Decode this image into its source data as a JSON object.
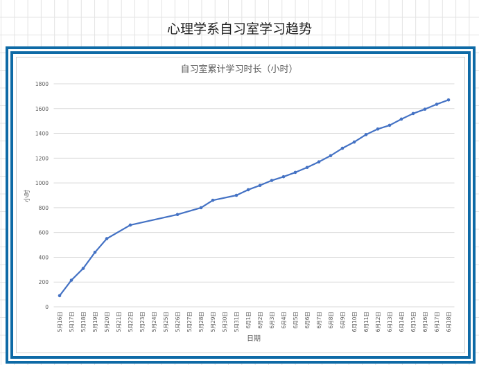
{
  "sheet_title": "心理学系自习室学习趋势",
  "colors": {
    "frame": "#0e6aa6",
    "series": "#4472c4"
  },
  "chart_data": {
    "type": "line",
    "title": "自习室累计学习时长（小时）",
    "xlabel": "日期",
    "ylabel": "小时",
    "ylim": [
      0,
      1800
    ],
    "yticks": [
      0,
      200,
      400,
      600,
      800,
      1000,
      1200,
      1400,
      1600,
      1800
    ],
    "grid": true,
    "legend": "none",
    "categories": [
      "5月16日",
      "5月17日",
      "5月18日",
      "5月19日",
      "5月20日",
      "5月21日",
      "5月22日",
      "5月23日",
      "5月24日",
      "5月25日",
      "5月26日",
      "5月27日",
      "5月28日",
      "5月29日",
      "5月30日",
      "5月31日",
      "6月1日",
      "6月2日",
      "6月3日",
      "6月4日",
      "6月5日",
      "6月6日",
      "6月7日",
      "6月8日",
      "6月9日",
      "6月10日",
      "6月11日",
      "6月12日",
      "6月13日",
      "6月14日",
      "6月15日",
      "6月16日",
      "6月17日",
      "6月18日"
    ],
    "values": [
      90,
      215,
      310,
      440,
      550,
      null,
      660,
      null,
      null,
      null,
      745,
      null,
      800,
      860,
      null,
      900,
      945,
      980,
      1020,
      1050,
      1085,
      1125,
      1170,
      1220,
      1280,
      1330,
      1390,
      1435,
      1465,
      1515,
      1560,
      1595,
      1635,
      1670
    ]
  }
}
